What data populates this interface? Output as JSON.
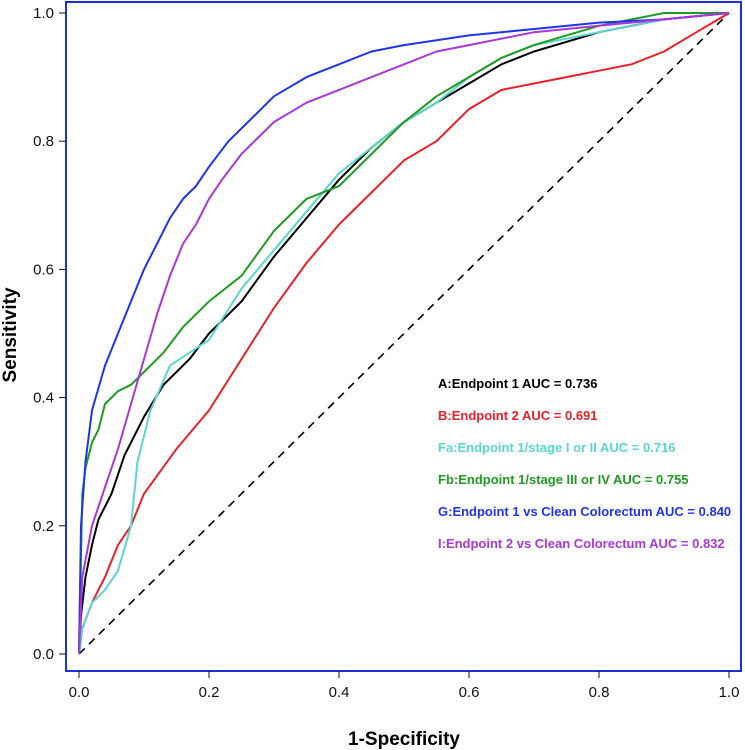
{
  "chart_data": {
    "type": "line",
    "title": "",
    "xlabel": "1-Specificity",
    "ylabel": "Sensitivity",
    "xlim": [
      0,
      1
    ],
    "ylim": [
      0,
      1
    ],
    "x_ticks": [
      "0.0",
      "0.2",
      "0.4",
      "0.6",
      "0.8",
      "1.0"
    ],
    "y_ticks": [
      "0.0",
      "0.2",
      "0.4",
      "0.6",
      "0.8",
      "1.0"
    ],
    "grid": false,
    "legend_position": "bottom-right",
    "frame_color": "#1f2fd6",
    "reference_line": {
      "style": "dashed",
      "color": "#000000",
      "points": [
        [
          0,
          0
        ],
        [
          1,
          1
        ]
      ]
    },
    "series": [
      {
        "name": "A:Endpoint 1 AUC = 0.736",
        "color": "#000000",
        "points": [
          [
            0,
            0
          ],
          [
            0.003,
            0.06
          ],
          [
            0.01,
            0.12
          ],
          [
            0.02,
            0.17
          ],
          [
            0.03,
            0.21
          ],
          [
            0.05,
            0.25
          ],
          [
            0.07,
            0.31
          ],
          [
            0.1,
            0.37
          ],
          [
            0.13,
            0.42
          ],
          [
            0.17,
            0.46
          ],
          [
            0.2,
            0.5
          ],
          [
            0.25,
            0.55
          ],
          [
            0.3,
            0.62
          ],
          [
            0.35,
            0.68
          ],
          [
            0.4,
            0.74
          ],
          [
            0.45,
            0.79
          ],
          [
            0.5,
            0.83
          ],
          [
            0.55,
            0.86
          ],
          [
            0.6,
            0.89
          ],
          [
            0.65,
            0.92
          ],
          [
            0.7,
            0.94
          ],
          [
            0.8,
            0.97
          ],
          [
            0.9,
            0.99
          ],
          [
            1,
            1
          ]
        ]
      },
      {
        "name": "B:Endpoint 2 AUC = 0.691",
        "color": "#e8202a",
        "points": [
          [
            0,
            0
          ],
          [
            0.005,
            0.04
          ],
          [
            0.02,
            0.08
          ],
          [
            0.04,
            0.12
          ],
          [
            0.06,
            0.17
          ],
          [
            0.08,
            0.2
          ],
          [
            0.1,
            0.25
          ],
          [
            0.15,
            0.32
          ],
          [
            0.2,
            0.38
          ],
          [
            0.25,
            0.46
          ],
          [
            0.3,
            0.54
          ],
          [
            0.35,
            0.61
          ],
          [
            0.4,
            0.67
          ],
          [
            0.45,
            0.72
          ],
          [
            0.5,
            0.77
          ],
          [
            0.55,
            0.8
          ],
          [
            0.6,
            0.85
          ],
          [
            0.65,
            0.88
          ],
          [
            0.7,
            0.89
          ],
          [
            0.75,
            0.9
          ],
          [
            0.8,
            0.91
          ],
          [
            0.85,
            0.92
          ],
          [
            0.9,
            0.94
          ],
          [
            0.95,
            0.97
          ],
          [
            1,
            1
          ]
        ]
      },
      {
        "name": "Fa:Endpoint 1/stage I or II AUC = 0.716",
        "color": "#5ad6cf",
        "points": [
          [
            0,
            0
          ],
          [
            0.005,
            0.04
          ],
          [
            0.02,
            0.08
          ],
          [
            0.04,
            0.1
          ],
          [
            0.06,
            0.13
          ],
          [
            0.08,
            0.2
          ],
          [
            0.09,
            0.3
          ],
          [
            0.11,
            0.38
          ],
          [
            0.14,
            0.45
          ],
          [
            0.17,
            0.47
          ],
          [
            0.2,
            0.49
          ],
          [
            0.25,
            0.57
          ],
          [
            0.3,
            0.63
          ],
          [
            0.35,
            0.69
          ],
          [
            0.4,
            0.75
          ],
          [
            0.45,
            0.79
          ],
          [
            0.5,
            0.83
          ],
          [
            0.55,
            0.86
          ],
          [
            0.6,
            0.9
          ],
          [
            0.65,
            0.93
          ],
          [
            0.7,
            0.95
          ],
          [
            0.8,
            0.97
          ],
          [
            0.9,
            0.99
          ],
          [
            1,
            1
          ]
        ]
      },
      {
        "name": "Fb:Endpoint 1/stage III or IV AUC = 0.755",
        "color": "#1f9a23",
        "points": [
          [
            0,
            0
          ],
          [
            0.005,
            0.25
          ],
          [
            0.01,
            0.29
          ],
          [
            0.02,
            0.33
          ],
          [
            0.03,
            0.35
          ],
          [
            0.04,
            0.39
          ],
          [
            0.06,
            0.41
          ],
          [
            0.08,
            0.42
          ],
          [
            0.1,
            0.44
          ],
          [
            0.13,
            0.47
          ],
          [
            0.16,
            0.51
          ],
          [
            0.2,
            0.55
          ],
          [
            0.25,
            0.59
          ],
          [
            0.3,
            0.66
          ],
          [
            0.35,
            0.71
          ],
          [
            0.4,
            0.73
          ],
          [
            0.42,
            0.75
          ],
          [
            0.45,
            0.78
          ],
          [
            0.5,
            0.83
          ],
          [
            0.55,
            0.87
          ],
          [
            0.6,
            0.9
          ],
          [
            0.65,
            0.93
          ],
          [
            0.7,
            0.95
          ],
          [
            0.8,
            0.98
          ],
          [
            0.9,
            1
          ],
          [
            1,
            1
          ]
        ]
      },
      {
        "name": "G:Endpoint 1 vs Clean Colorectum AUC = 0.840",
        "color": "#1f35e6",
        "points": [
          [
            0,
            0
          ],
          [
            0.003,
            0.2
          ],
          [
            0.01,
            0.3
          ],
          [
            0.02,
            0.38
          ],
          [
            0.04,
            0.45
          ],
          [
            0.06,
            0.5
          ],
          [
            0.08,
            0.55
          ],
          [
            0.1,
            0.6
          ],
          [
            0.12,
            0.64
          ],
          [
            0.14,
            0.68
          ],
          [
            0.16,
            0.71
          ],
          [
            0.18,
            0.73
          ],
          [
            0.2,
            0.76
          ],
          [
            0.23,
            0.8
          ],
          [
            0.27,
            0.84
          ],
          [
            0.3,
            0.87
          ],
          [
            0.35,
            0.9
          ],
          [
            0.4,
            0.92
          ],
          [
            0.45,
            0.94
          ],
          [
            0.5,
            0.95
          ],
          [
            0.6,
            0.965
          ],
          [
            0.7,
            0.975
          ],
          [
            0.8,
            0.985
          ],
          [
            0.9,
            0.99
          ],
          [
            1,
            1
          ]
        ]
      },
      {
        "name": "I:Endpoint 2 vs Clean Colorectum AUC = 0.832",
        "color": "#a838d8",
        "points": [
          [
            0,
            0
          ],
          [
            0.005,
            0.12
          ],
          [
            0.02,
            0.2
          ],
          [
            0.04,
            0.26
          ],
          [
            0.06,
            0.32
          ],
          [
            0.08,
            0.39
          ],
          [
            0.1,
            0.46
          ],
          [
            0.12,
            0.53
          ],
          [
            0.14,
            0.59
          ],
          [
            0.16,
            0.64
          ],
          [
            0.18,
            0.67
          ],
          [
            0.2,
            0.71
          ],
          [
            0.22,
            0.74
          ],
          [
            0.25,
            0.78
          ],
          [
            0.3,
            0.83
          ],
          [
            0.35,
            0.86
          ],
          [
            0.4,
            0.88
          ],
          [
            0.45,
            0.9
          ],
          [
            0.5,
            0.92
          ],
          [
            0.55,
            0.94
          ],
          [
            0.6,
            0.95
          ],
          [
            0.7,
            0.97
          ],
          [
            0.8,
            0.98
          ],
          [
            0.9,
            0.99
          ],
          [
            1,
            1
          ]
        ]
      }
    ]
  }
}
